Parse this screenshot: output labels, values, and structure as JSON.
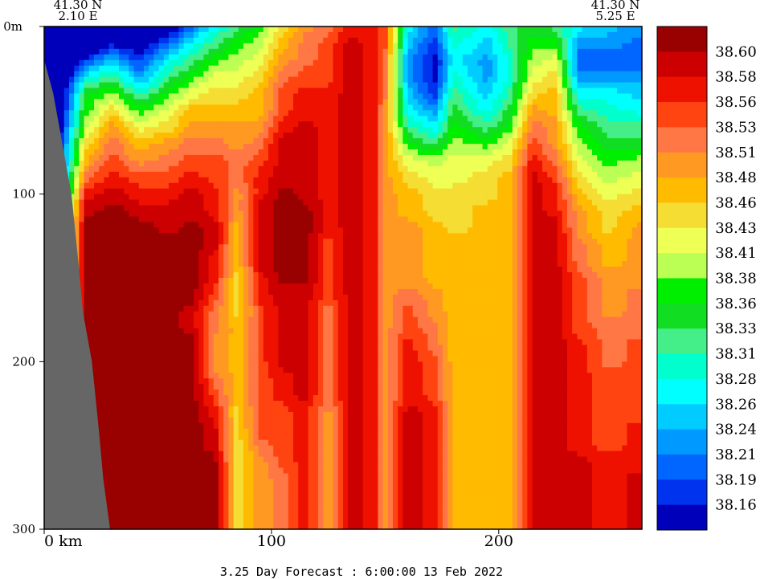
{
  "chart_data": {
    "type": "heatmap",
    "corner_left": {
      "lat": "41.30 N",
      "lon": "2.10 E"
    },
    "corner_right": {
      "lat": "41.30 N",
      "lon": "5.25 E"
    },
    "x_ticks": [
      {
        "value": 0,
        "label": "0 km"
      },
      {
        "value": 100,
        "label": "100"
      },
      {
        "value": 200,
        "label": "200"
      }
    ],
    "y_ticks": [
      {
        "value": 0,
        "label": "0m"
      },
      {
        "value": 100,
        "label": "100"
      },
      {
        "value": 200,
        "label": "200"
      },
      {
        "value": 300,
        "label": "300"
      }
    ],
    "xlim": [
      0,
      263
    ],
    "ylim": [
      0,
      300
    ],
    "y_inverted": true,
    "footer": "3.25 Day Forecast :  6:00:00  13 Feb 2022",
    "colorbar": {
      "labels": [
        "38.60",
        "38.58",
        "38.56",
        "38.53",
        "38.51",
        "38.48",
        "38.46",
        "38.43",
        "38.41",
        "38.38",
        "38.36",
        "38.33",
        "38.31",
        "38.28",
        "38.26",
        "38.24",
        "38.21",
        "38.19",
        "38.16"
      ],
      "colors": [
        "#990000",
        "#cc0000",
        "#ee1100",
        "#ff4411",
        "#ff7744",
        "#ff9922",
        "#ffbb00",
        "#f5dd33",
        "#eeff55",
        "#bbff55",
        "#00ee00",
        "#11dd22",
        "#44ee88",
        "#00ffcc",
        "#00ffff",
        "#00ccff",
        "#0099ff",
        "#0066ff",
        "#0033ee",
        "#0000bb"
      ]
    },
    "land_color": "#666666",
    "section_columns": [
      {
        "x": 0,
        "s": [
          28,
          26,
          24,
          22,
          20,
          18
        ]
      },
      {
        "x": 18,
        "s": [
          26,
          22,
          18,
          14,
          11,
          10,
          9,
          7,
          6,
          4,
          2,
          1,
          0,
          0,
          0,
          0,
          0,
          0,
          0,
          0,
          0,
          0,
          0,
          0,
          0,
          0,
          0,
          0,
          0,
          0,
          0
        ]
      },
      {
        "x": 30,
        "s": [
          24,
          19,
          15,
          12,
          9,
          7,
          5,
          4,
          3,
          2,
          1,
          0,
          0,
          0,
          0,
          0,
          0,
          0,
          0,
          0,
          0,
          0,
          0,
          0,
          0,
          0,
          0,
          0,
          0,
          0,
          0
        ]
      },
      {
        "x": 42,
        "s": [
          23,
          20,
          18,
          16,
          13,
          10,
          8,
          6,
          5,
          3,
          2,
          1,
          0,
          0,
          0,
          0,
          0,
          0,
          0,
          0,
          0,
          0,
          0,
          0,
          0,
          0,
          0,
          0,
          0,
          0,
          0
        ]
      },
      {
        "x": 55,
        "s": [
          20,
          17,
          14,
          12,
          10,
          8,
          7,
          5,
          4,
          3,
          2,
          1,
          1,
          0,
          0,
          0,
          0,
          0,
          0,
          0,
          0,
          0,
          0,
          0,
          0,
          0,
          0,
          0,
          0,
          0,
          0
        ]
      },
      {
        "x": 65,
        "s": [
          17,
          14,
          12,
          10,
          8,
          6,
          5,
          4,
          3,
          2,
          1,
          1,
          0,
          0,
          0,
          0,
          0,
          1,
          1,
          0,
          0,
          0,
          0,
          0,
          0,
          0,
          0,
          0,
          0,
          0,
          0
        ]
      },
      {
        "x": 75,
        "s": [
          14,
          12,
          10,
          8,
          7,
          6,
          5,
          4,
          3,
          3,
          2,
          2,
          1,
          1,
          2,
          2,
          3,
          4,
          4,
          5,
          5,
          4,
          3,
          2,
          1,
          1,
          0,
          0,
          0,
          0,
          0
        ]
      },
      {
        "x": 85,
        "s": [
          12,
          10,
          9,
          8,
          7,
          6,
          5,
          5,
          4,
          4,
          5,
          5,
          6,
          6,
          6,
          7,
          7,
          7,
          6,
          6,
          6,
          6,
          6,
          7,
          7,
          7,
          7,
          7,
          7,
          7,
          7
        ]
      },
      {
        "x": 95,
        "s": [
          10,
          9,
          8,
          7,
          6,
          6,
          5,
          4,
          3,
          2,
          2,
          1,
          1,
          1,
          1,
          2,
          2,
          3,
          3,
          3,
          3,
          3,
          3,
          3,
          3,
          4,
          5,
          5,
          5,
          5,
          5
        ]
      },
      {
        "x": 105,
        "s": [
          7,
          6,
          5,
          4,
          3,
          3,
          2,
          1,
          1,
          1,
          0,
          0,
          0,
          0,
          0,
          0,
          1,
          1,
          1,
          1,
          1,
          2,
          2,
          3,
          3,
          3,
          3,
          4,
          4,
          4,
          4
        ]
      },
      {
        "x": 115,
        "s": [
          5,
          4,
          4,
          3,
          2,
          2,
          1,
          1,
          1,
          1,
          1,
          0,
          0,
          0,
          0,
          0,
          1,
          1,
          1,
          1,
          1,
          1,
          1,
          2,
          2,
          2,
          2,
          2,
          2,
          2,
          2
        ]
      },
      {
        "x": 125,
        "s": [
          4,
          3,
          3,
          3,
          2,
          2,
          2,
          2,
          2,
          2,
          2,
          2,
          2,
          3,
          3,
          3,
          3,
          4,
          4,
          4,
          4,
          4,
          4,
          5,
          5,
          5,
          5,
          5,
          5,
          5,
          5
        ]
      },
      {
        "x": 135,
        "s": [
          2,
          1,
          1,
          1,
          1,
          1,
          1,
          1,
          1,
          1,
          1,
          1,
          1,
          1,
          1,
          1,
          1,
          1,
          1,
          1,
          1,
          1,
          1,
          1,
          1,
          1,
          1,
          1,
          1,
          1,
          1
        ]
      },
      {
        "x": 145,
        "s": [
          2,
          2,
          2,
          2,
          2,
          2,
          2,
          2,
          2,
          2,
          2,
          2,
          2,
          2,
          2,
          2,
          2,
          2,
          2,
          2,
          2,
          2,
          2,
          2,
          2,
          2,
          2,
          2,
          2,
          2,
          2
        ]
      },
      {
        "x": 150,
        "s": [
          3,
          3,
          4,
          4,
          4,
          5,
          5,
          5,
          5,
          5,
          5,
          5,
          5,
          5,
          5,
          5,
          5,
          5,
          5,
          5,
          5,
          5,
          5,
          5,
          5,
          5,
          5,
          5,
          5,
          5,
          5
        ]
      },
      {
        "x": 160,
        "s": [
          14,
          15,
          16,
          16,
          15,
          14,
          12,
          10,
          8,
          7,
          6,
          6,
          5,
          5,
          5,
          5,
          4,
          3,
          3,
          2,
          2,
          2,
          2,
          1,
          1,
          1,
          1,
          1,
          1,
          1,
          1
        ]
      },
      {
        "x": 172,
        "s": [
          17,
          18,
          19,
          19,
          18,
          16,
          14,
          12,
          9,
          8,
          7,
          7,
          6,
          6,
          6,
          6,
          5,
          5,
          4,
          4,
          3,
          3,
          3,
          2,
          2,
          2,
          2,
          2,
          2,
          2,
          2
        ]
      },
      {
        "x": 180,
        "s": [
          12,
          13,
          14,
          13,
          12,
          11,
          10,
          9,
          8,
          8,
          7,
          7,
          7,
          6,
          6,
          6,
          6,
          6,
          6,
          6,
          6,
          6,
          6,
          6,
          6,
          6,
          6,
          6,
          6,
          6,
          6
        ]
      },
      {
        "x": 195,
        "s": [
          14,
          15,
          16,
          16,
          15,
          14,
          12,
          10,
          8,
          7,
          7,
          6,
          6,
          6,
          6,
          6,
          6,
          6,
          6,
          6,
          6,
          6,
          6,
          6,
          6,
          6,
          6,
          6,
          6,
          6,
          6
        ]
      },
      {
        "x": 205,
        "s": [
          12,
          12,
          13,
          13,
          12,
          11,
          10,
          8,
          7,
          6,
          6,
          6,
          6,
          6,
          6,
          6,
          6,
          6,
          6,
          6,
          6,
          6,
          6,
          6,
          6,
          6,
          6,
          6,
          6,
          6,
          6
        ]
      },
      {
        "x": 215,
        "s": [
          11,
          10,
          9,
          8,
          7,
          5,
          4,
          3,
          2,
          1,
          1,
          1,
          1,
          1,
          1,
          1,
          1,
          1,
          1,
          1,
          1,
          1,
          1,
          1,
          1,
          1,
          1,
          1,
          1,
          1,
          1
        ]
      },
      {
        "x": 225,
        "s": [
          12,
          10,
          8,
          7,
          6,
          6,
          5,
          5,
          4,
          3,
          2,
          2,
          1,
          1,
          1,
          1,
          1,
          1,
          1,
          1,
          1,
          1,
          1,
          1,
          1,
          1,
          1,
          1,
          1,
          1,
          1
        ]
      },
      {
        "x": 235,
        "s": [
          14,
          16,
          17,
          16,
          14,
          12,
          10,
          9,
          8,
          7,
          6,
          5,
          5,
          4,
          4,
          3,
          3,
          3,
          3,
          2,
          2,
          2,
          2,
          2,
          2,
          2,
          1,
          1,
          1,
          1,
          1
        ]
      },
      {
        "x": 248,
        "s": [
          15,
          16,
          17,
          16,
          14,
          13,
          12,
          11,
          10,
          9,
          8,
          7,
          7,
          6,
          6,
          5,
          5,
          5,
          4,
          4,
          4,
          3,
          3,
          3,
          3,
          3,
          2,
          2,
          2,
          2,
          2
        ]
      },
      {
        "x": 263,
        "s": [
          16,
          17,
          17,
          16,
          15,
          14,
          12,
          11,
          9,
          8,
          7,
          6,
          5,
          5,
          5,
          5,
          4,
          4,
          4,
          3,
          3,
          3,
          3,
          3,
          2,
          2,
          2,
          1,
          1,
          1,
          1
        ]
      }
    ],
    "land_boundary": [
      {
        "x": 0,
        "y": 0
      },
      {
        "x": 0,
        "y": 20
      },
      {
        "x": 4,
        "y": 40
      },
      {
        "x": 8,
        "y": 70
      },
      {
        "x": 12,
        "y": 100
      },
      {
        "x": 15,
        "y": 140
      },
      {
        "x": 17,
        "y": 170
      },
      {
        "x": 21,
        "y": 200
      },
      {
        "x": 24,
        "y": 240
      },
      {
        "x": 26,
        "y": 270
      },
      {
        "x": 29,
        "y": 300
      }
    ]
  }
}
